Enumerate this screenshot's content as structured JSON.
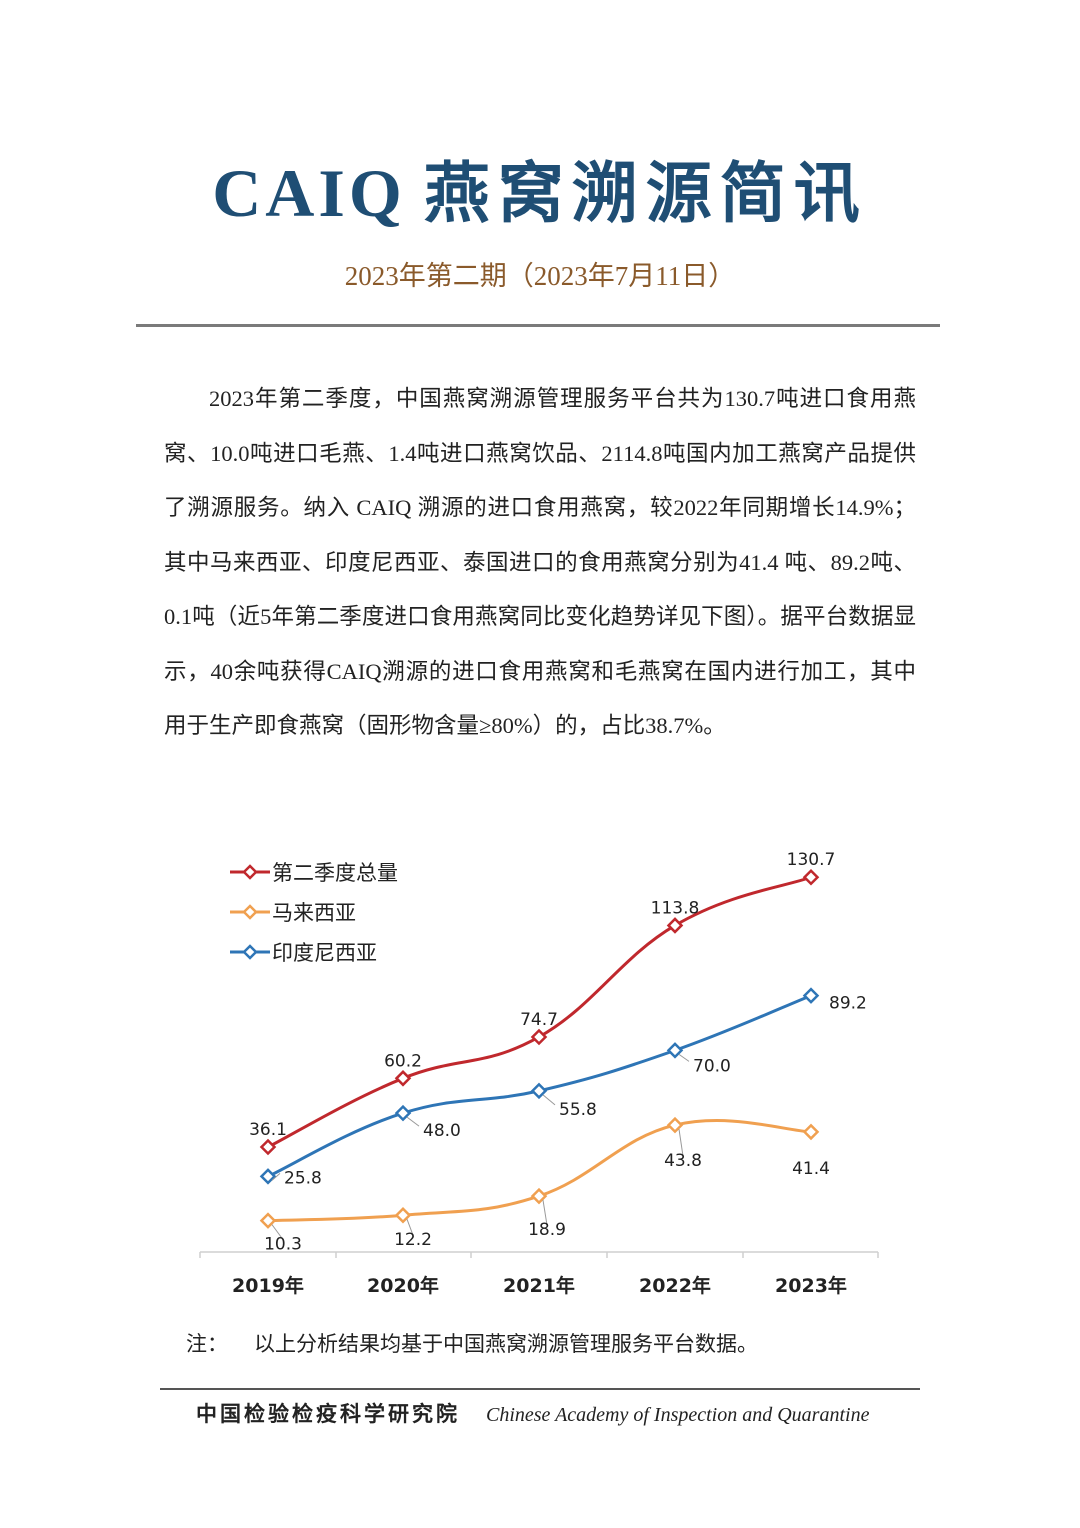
{
  "header": {
    "title_latin": "CAIQ",
    "title_cn": "燕窝溯源简讯",
    "issue": "2023年第二期（2023年7月11日）"
  },
  "body": {
    "paragraph": "2023年第二季度，中国燕窝溯源管理服务平台共为130.7吨进口食用燕窝、10.0吨进口毛燕、1.4吨进口燕窝饮品、2114.8吨国内加工燕窝产品提供了溯源服务。纳入 CAIQ 溯源的进口食用燕窝，较2022年同期增长14.9%；其中马来西亚、印度尼西亚、泰国进口的食用燕窝分别为41.4 吨、89.2吨、0.1吨（近5年第二季度进口食用燕窝同比变化趋势详见下图）。据平台数据显示，40余吨获得CAIQ溯源的进口食用燕窝和毛燕窝在国内进行加工，其中用于生产即食燕窝（固形物含量≥80%）的，占比38.7%。"
  },
  "chart_data": {
    "type": "line",
    "categories": [
      "2019年",
      "2020年",
      "2021年",
      "2022年",
      "2023年"
    ],
    "series": [
      {
        "name": "第二季度总量",
        "color": "#c0282d",
        "values": [
          36.1,
          60.2,
          74.7,
          113.8,
          130.7
        ],
        "labels": [
          "36.1",
          "60.2",
          "74.7",
          "113.8",
          "130.7"
        ]
      },
      {
        "name": "马来西亚",
        "color": "#f0a050",
        "values": [
          10.3,
          12.2,
          18.9,
          43.8,
          41.4
        ],
        "labels": [
          "10.3",
          "12.2",
          "18.9",
          "43.8",
          "41.4"
        ]
      },
      {
        "name": "印度尼西亚",
        "color": "#2e75b6",
        "values": [
          25.8,
          48.0,
          55.8,
          70.0,
          89.2
        ],
        "labels": [
          "25.8",
          "48.0",
          "55.8",
          "70.0",
          "89.2"
        ]
      }
    ],
    "ylim": [
      0,
      140
    ],
    "title": "",
    "xlabel": "",
    "ylabel": "",
    "legend": "top-left"
  },
  "note": {
    "label": "注：",
    "text": "以上分析结果均基于中国燕窝溯源管理服务平台数据。"
  },
  "footer": {
    "org_cn": "中国检验检疫科学研究院",
    "org_en": "Chinese Academy of Inspection and Quarantine"
  }
}
